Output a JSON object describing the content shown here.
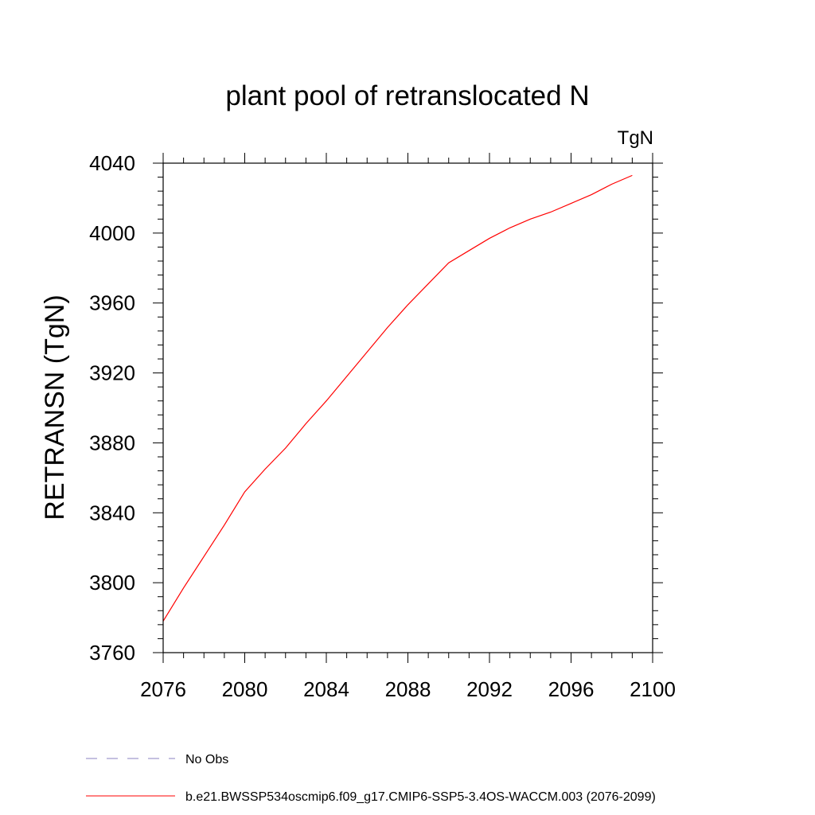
{
  "chart_data": {
    "type": "line",
    "title": "plant pool of retranslocated N",
    "units_label": "TgN",
    "xlabel": "",
    "ylabel": "RETRANSN  (TgN)",
    "xlim": [
      2076,
      2100
    ],
    "ylim": [
      3760,
      4040
    ],
    "x_ticks": [
      2076,
      2080,
      2084,
      2088,
      2092,
      2096,
      2100
    ],
    "y_ticks": [
      3760,
      3800,
      3840,
      3880,
      3920,
      3960,
      4000,
      4040
    ],
    "grid": false,
    "legend_position": "bottom-left",
    "series": [
      {
        "name": "No Obs",
        "color": "#8b82c2",
        "style": "dashed",
        "x": [],
        "y": []
      },
      {
        "name": "b.e21.BWSSP534oscmip6.f09_g17.CMIP6-SSP5-3.4OS-WACCM.003 (2076-2099)",
        "color": "#ff0000",
        "style": "solid",
        "x": [
          2076,
          2077,
          2078,
          2079,
          2080,
          2081,
          2082,
          2083,
          2084,
          2085,
          2086,
          2087,
          2088,
          2089,
          2090,
          2091,
          2092,
          2093,
          2094,
          2095,
          2096,
          2097,
          2098,
          2099
        ],
        "y": [
          3778,
          3797,
          3815,
          3833,
          3852,
          3865,
          3877,
          3891,
          3904,
          3918,
          3932,
          3946,
          3959,
          3971,
          3983,
          3990,
          3997,
          4003,
          4008,
          4012,
          4017,
          4022,
          4028,
          4033
        ]
      }
    ]
  }
}
